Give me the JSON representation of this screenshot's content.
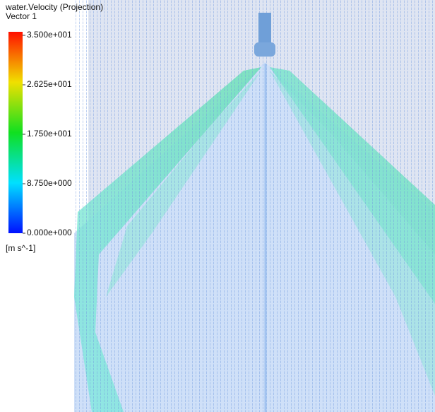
{
  "colorbar": {
    "title": "water.Velocity (Projection)",
    "subtitle": "Vector 1",
    "range": [
      0,
      35
    ],
    "ticks": [
      {
        "value": 35,
        "label": "3.500e+001"
      },
      {
        "value": 26.25,
        "label": "2.625e+001"
      },
      {
        "value": 17.5,
        "label": "1.750e+001"
      },
      {
        "value": 8.75,
        "label": "8.750e+000"
      },
      {
        "value": 0,
        "label": "0.000e+000"
      }
    ],
    "unit": "[m s^-1]"
  }
}
